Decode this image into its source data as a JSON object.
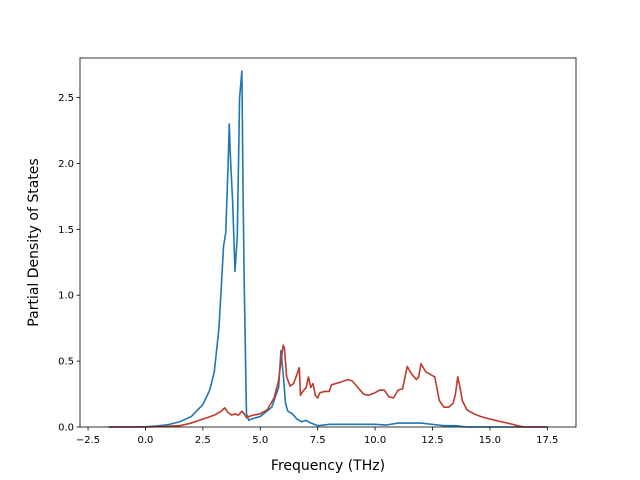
{
  "chart_data": {
    "type": "line",
    "xlabel": "Frequency (THz)",
    "ylabel": "Partial Density of States",
    "xlim": [
      -2.85,
      18.75
    ],
    "ylim": [
      0,
      2.8
    ],
    "x_ticks": [
      -2.5,
      0.0,
      2.5,
      5.0,
      7.5,
      10.0,
      12.5,
      15.0,
      17.5
    ],
    "x_tick_labels": [
      "−2.5",
      "0.0",
      "2.5",
      "5.0",
      "7.5",
      "10.0",
      "12.5",
      "15.0",
      "17.5"
    ],
    "y_ticks": [
      0.0,
      0.5,
      1.0,
      1.5,
      2.0,
      2.5
    ],
    "y_tick_labels": [
      "0.0",
      "0.5",
      "1.0",
      "1.5",
      "2.0",
      "2.5"
    ],
    "grid": false,
    "legend": "none",
    "series": [
      {
        "color": "#1f77b4",
        "x": [
          -1.6,
          -1.0,
          -0.5,
          0.0,
          0.5,
          1.0,
          1.5,
          2.0,
          2.5,
          2.8,
          3.0,
          3.2,
          3.3,
          3.4,
          3.5,
          3.6,
          3.65,
          3.7,
          3.8,
          3.9,
          4.0,
          4.1,
          4.15,
          4.2,
          4.25,
          4.3,
          4.35,
          4.4,
          4.5,
          4.6,
          5.0,
          5.5,
          5.8,
          5.9,
          6.0,
          6.1,
          6.2,
          6.4,
          6.6,
          6.8,
          7.0,
          7.2,
          7.5,
          8.0,
          9.0,
          10.0,
          10.5,
          11.0,
          11.5,
          12.0,
          12.5,
          13.0,
          13.5,
          14.0,
          14.5,
          15.0,
          15.5,
          16.0,
          16.5,
          17.0,
          17.5
        ],
        "y": [
          0.0,
          0.0,
          0.0,
          0.002,
          0.008,
          0.018,
          0.04,
          0.08,
          0.17,
          0.28,
          0.42,
          0.75,
          1.05,
          1.37,
          1.48,
          2.0,
          2.3,
          2.05,
          1.7,
          1.18,
          1.45,
          2.5,
          2.6,
          2.7,
          1.8,
          1.1,
          0.6,
          0.1,
          0.05,
          0.06,
          0.08,
          0.15,
          0.3,
          0.58,
          0.4,
          0.18,
          0.12,
          0.1,
          0.06,
          0.04,
          0.05,
          0.03,
          0.01,
          0.02,
          0.02,
          0.02,
          0.015,
          0.03,
          0.03,
          0.03,
          0.02,
          0.01,
          0.01,
          0.0,
          0.0,
          0.0,
          0.0,
          0.0,
          0.0,
          0.0,
          0.0
        ]
      },
      {
        "color": "#c0392b",
        "x": [
          -1.6,
          -1.0,
          0.0,
          0.5,
          1.0,
          1.5,
          2.0,
          2.5,
          3.0,
          3.3,
          3.45,
          3.6,
          3.75,
          3.9,
          4.05,
          4.2,
          4.3,
          4.4,
          4.5,
          4.7,
          5.0,
          5.3,
          5.6,
          5.8,
          5.9,
          6.0,
          6.05,
          6.15,
          6.3,
          6.45,
          6.6,
          6.7,
          6.75,
          6.85,
          7.0,
          7.1,
          7.2,
          7.3,
          7.4,
          7.5,
          7.6,
          7.8,
          8.0,
          8.1,
          8.5,
          8.8,
          9.0,
          9.2,
          9.5,
          9.7,
          10.0,
          10.2,
          10.4,
          10.6,
          10.8,
          11.0,
          11.2,
          11.4,
          11.6,
          11.8,
          11.9,
          12.0,
          12.2,
          12.4,
          12.6,
          12.8,
          13.0,
          13.2,
          13.4,
          13.5,
          13.6,
          13.7,
          13.8,
          14.0,
          14.3,
          14.6,
          15.0,
          15.5,
          16.0,
          16.2,
          16.5,
          17.0,
          17.5
        ],
        "y": [
          0.0,
          0.0,
          0.0,
          0.002,
          0.005,
          0.01,
          0.03,
          0.06,
          0.09,
          0.12,
          0.145,
          0.11,
          0.09,
          0.1,
          0.09,
          0.12,
          0.1,
          0.07,
          0.08,
          0.09,
          0.1,
          0.13,
          0.22,
          0.35,
          0.5,
          0.62,
          0.6,
          0.38,
          0.31,
          0.33,
          0.4,
          0.45,
          0.24,
          0.27,
          0.3,
          0.38,
          0.3,
          0.33,
          0.24,
          0.22,
          0.26,
          0.27,
          0.27,
          0.32,
          0.34,
          0.36,
          0.35,
          0.31,
          0.25,
          0.24,
          0.26,
          0.28,
          0.28,
          0.23,
          0.22,
          0.28,
          0.29,
          0.46,
          0.4,
          0.36,
          0.38,
          0.48,
          0.42,
          0.4,
          0.38,
          0.2,
          0.15,
          0.15,
          0.18,
          0.25,
          0.38,
          0.3,
          0.2,
          0.13,
          0.1,
          0.08,
          0.06,
          0.04,
          0.02,
          0.01,
          0.0,
          0.0,
          0.0
        ]
      }
    ]
  }
}
